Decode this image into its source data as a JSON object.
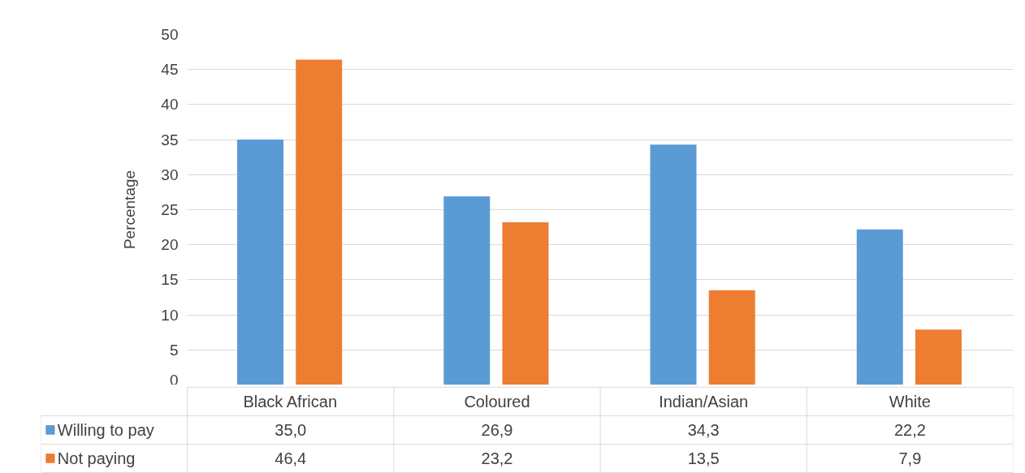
{
  "chart_data": {
    "type": "bar",
    "ylabel": "Percentage",
    "categories": [
      "Black African",
      "Coloured",
      "Indian/Asian",
      "White"
    ],
    "series": [
      {
        "name": "Willing to pay",
        "color": "#5b9bd5",
        "values": [
          35.0,
          26.9,
          34.3,
          22.2
        ],
        "value_labels": [
          "35,0",
          "26,9",
          "34,3",
          "22,2"
        ]
      },
      {
        "name": "Not paying",
        "color": "#ed7d31",
        "values": [
          46.4,
          23.2,
          13.5,
          7.9
        ],
        "value_labels": [
          "46,4",
          "23,2",
          "13,5",
          "7,9"
        ]
      }
    ],
    "ylim": [
      0,
      50
    ],
    "yticks": [
      0,
      5,
      10,
      15,
      20,
      25,
      30,
      35,
      40,
      45,
      50
    ],
    "grid": "y",
    "legend": "bottom"
  }
}
